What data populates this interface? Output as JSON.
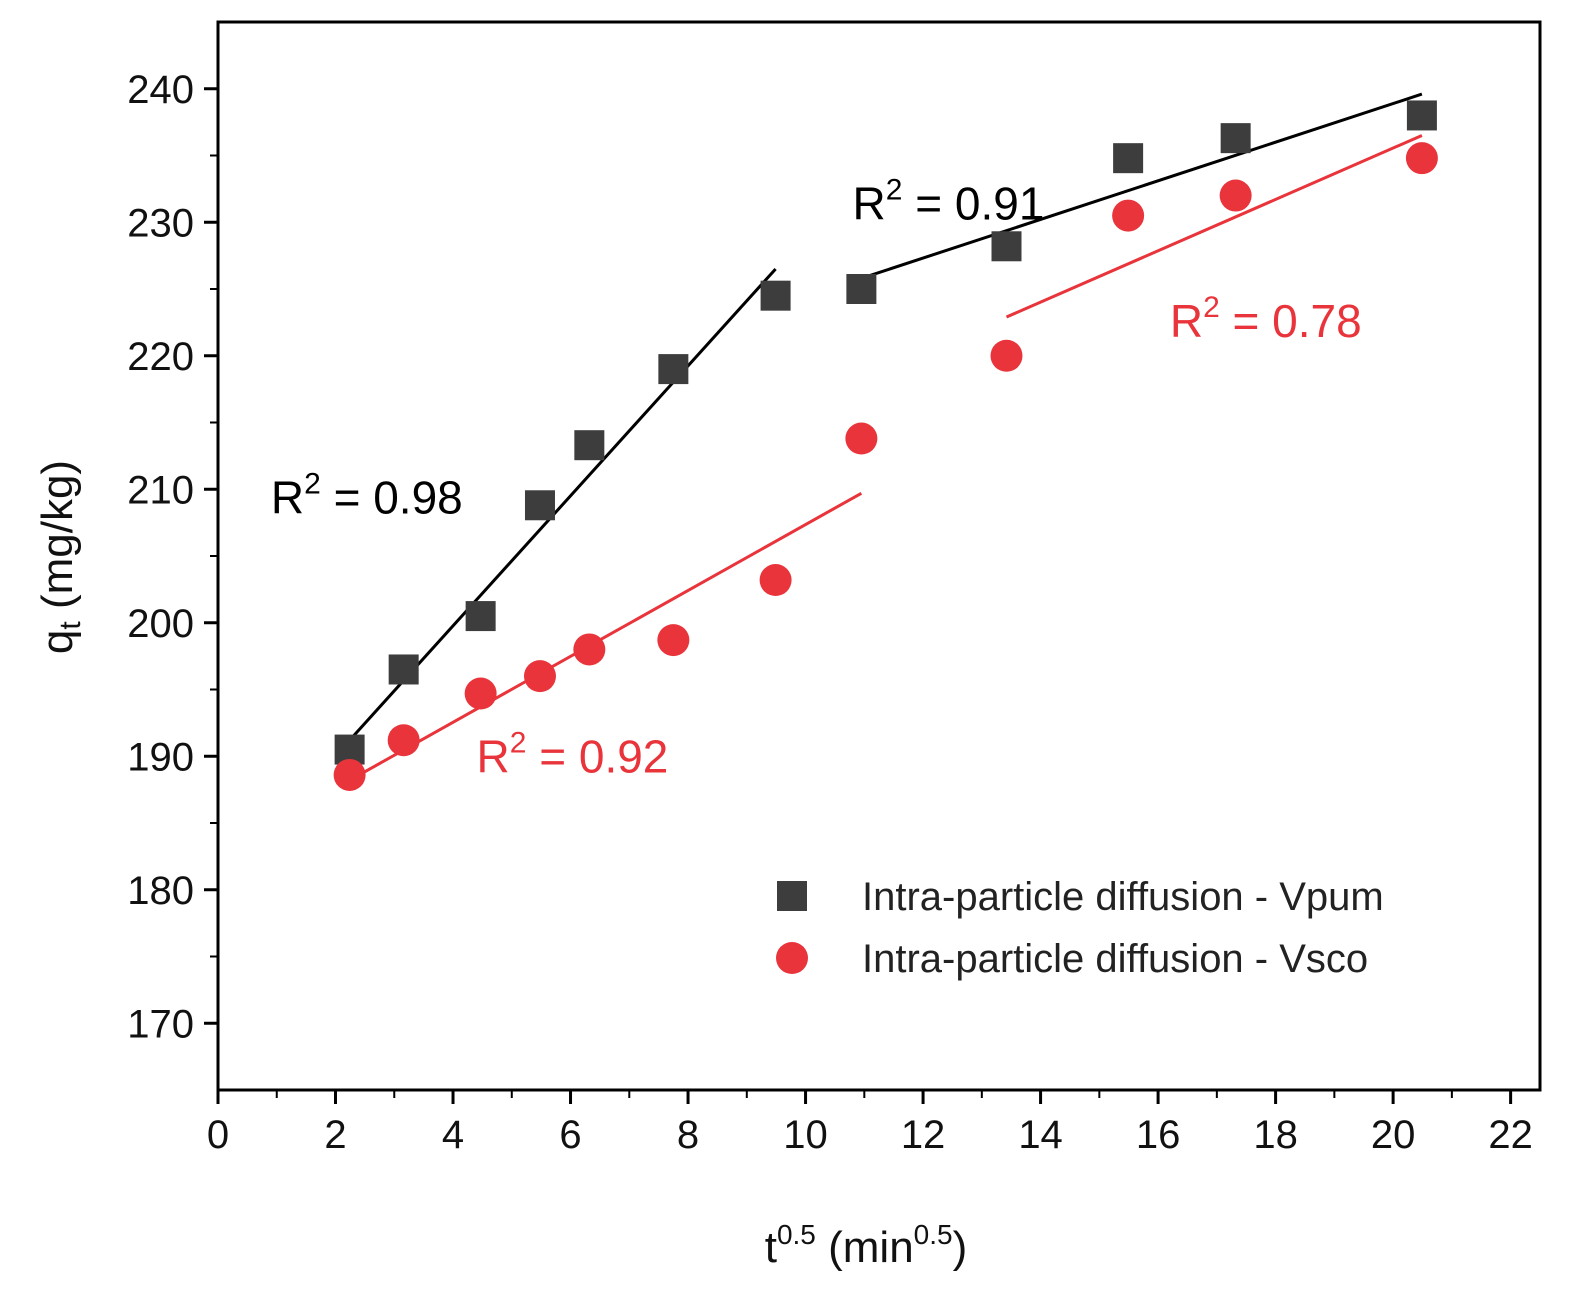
{
  "chart_data": {
    "type": "scatter",
    "title": "",
    "xlabel": {
      "base": "t",
      "sup": "0.5",
      "rest": " (min",
      "sup2": "0.5",
      "end": ")"
    },
    "ylabel": {
      "base": "q",
      "sub": "t",
      "rest": " (mg/kg)"
    },
    "xlim": [
      0,
      22.5
    ],
    "ylim": [
      165,
      245
    ],
    "xticks": [
      0,
      2,
      4,
      6,
      8,
      10,
      12,
      14,
      16,
      18,
      20,
      22
    ],
    "yticks": [
      170,
      180,
      190,
      200,
      210,
      220,
      230,
      240
    ],
    "legend_position": "bottom-right",
    "series": [
      {
        "name": "Intra-particle diffusion - Vpum",
        "marker": "square",
        "color": "#3d3d3d",
        "x": [
          2.24,
          3.16,
          4.47,
          5.48,
          6.32,
          7.75,
          9.49,
          10.95,
          13.42,
          15.49,
          17.32,
          20.49
        ],
        "y": [
          190.5,
          196.5,
          200.5,
          208.8,
          213.3,
          219.0,
          224.5,
          225.0,
          228.2,
          234.8,
          236.3,
          238.0
        ]
      },
      {
        "name": "Intra-particle diffusion - Vsco",
        "marker": "circle",
        "color": "#e8343a",
        "x": [
          2.24,
          3.16,
          4.47,
          5.48,
          6.32,
          7.75,
          9.49,
          10.95,
          13.42,
          15.49,
          17.32,
          20.49
        ],
        "y": [
          188.6,
          191.2,
          194.7,
          196.0,
          198.0,
          198.7,
          203.2,
          213.8,
          220.0,
          230.5,
          232.0,
          234.8
        ]
      }
    ],
    "fit_lines": [
      {
        "name": "Vpum fit 1",
        "color": "#000000",
        "x": [
          2.24,
          9.49
        ],
        "y": [
          191.2,
          226.5
        ]
      },
      {
        "name": "Vpum fit 2",
        "color": "#000000",
        "x": [
          10.95,
          20.49
        ],
        "y": [
          225.8,
          239.6
        ]
      },
      {
        "name": "Vsco fit 1",
        "color": "#e8343a",
        "x": [
          2.24,
          10.95
        ],
        "y": [
          188.2,
          209.7
        ]
      },
      {
        "name": "Vsco fit 2",
        "color": "#e8343a",
        "x": [
          13.42,
          20.49
        ],
        "y": [
          222.9,
          236.5
        ]
      }
    ],
    "annotations": [
      {
        "base": "R",
        "sup": "2",
        "text": " = 0.98",
        "color": "#000000",
        "x": 0.9,
        "y": 208.2
      },
      {
        "base": "R",
        "sup": "2",
        "text": " = 0.91",
        "color": "#000000",
        "x": 10.8,
        "y": 230.2
      },
      {
        "base": "R",
        "sup": "2",
        "text": " = 0.92",
        "color": "#e8343a",
        "x": 4.4,
        "y": 188.8
      },
      {
        "base": "R",
        "sup": "2",
        "text": " = 0.78",
        "color": "#e8343a",
        "x": 16.2,
        "y": 221.4
      }
    ]
  }
}
